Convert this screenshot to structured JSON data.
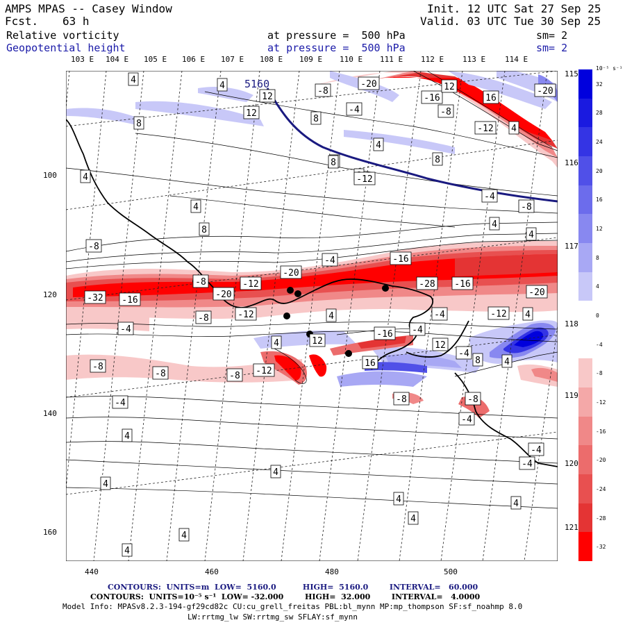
{
  "header": {
    "title": "AMPS MPAS -- Casey Window",
    "forecast_label": "Fcst.",
    "forecast_value": "63 h",
    "init": "Init. 12 UTC Sat 27 Sep 25",
    "valid": "Valid. 03 UTC Tue 30 Sep 25",
    "field1_name": "Relative vorticity",
    "field1_level": "at pressure =  500 hPa",
    "field1_sm": "sm= 2",
    "field2_name": "Geopotential height",
    "field2_level": "at pressure =  500 hPa",
    "field2_sm": "sm= 2"
  },
  "longitude_labels_top": [
    "103 E",
    "104 E",
    "105 E",
    "106 E",
    "107 E",
    "108 E",
    "109 E",
    "110 E",
    "111 E",
    "112 E",
    "113 E",
    "114 E"
  ],
  "longitude_labels_right": [
    "115 E",
    "116 E",
    "117 E",
    "118 E",
    "119 E",
    "120 E",
    "121 E"
  ],
  "x_axis_ticks": [
    "440",
    "460",
    "480",
    "500"
  ],
  "y_axis_ticks": [
    "100",
    "120",
    "140",
    "160"
  ],
  "colorbar": {
    "unit_label": "10⁻⁵ s⁻¹",
    "ticks": [
      "32",
      "28",
      "24",
      "20",
      "16",
      "12",
      "8",
      "4",
      "0",
      "-4",
      "-8",
      "-12",
      "-16",
      "-20",
      "-24",
      "-28",
      "-32"
    ],
    "colors": [
      "#0000dd",
      "#1a1ae0",
      "#3434e4",
      "#5050e8",
      "#6c6cec",
      "#8888f0",
      "#a8a8f4",
      "#c8c8f8",
      "#ffffff",
      "#ffffff",
      "#f8c8c8",
      "#f4a8a8",
      "#f08888",
      "#ec6c6c",
      "#e85050",
      "#e43434",
      "#ff0000"
    ]
  },
  "map_labels": {
    "height_contour": "5160",
    "vorticity_labels": [
      {
        "v": "4"
      },
      {
        "v": "4"
      },
      {
        "v": "-8"
      },
      {
        "v": "-20"
      },
      {
        "v": "12"
      },
      {
        "v": "-16"
      },
      {
        "v": "-8"
      },
      {
        "v": "16"
      },
      {
        "v": "-20"
      },
      {
        "v": "12"
      },
      {
        "v": "-4"
      },
      {
        "v": "8"
      },
      {
        "v": "-12"
      },
      {
        "v": "4"
      },
      {
        "v": "8"
      },
      {
        "v": "12"
      },
      {
        "v": "4"
      },
      {
        "v": "8"
      },
      {
        "v": "8"
      },
      {
        "v": "4"
      },
      {
        "v": "4"
      },
      {
        "v": "-4"
      },
      {
        "v": "-8"
      },
      {
        "v": "4"
      },
      {
        "v": "4"
      },
      {
        "v": "8"
      },
      {
        "v": "4"
      },
      {
        "v": "8"
      },
      {
        "v": "-12"
      },
      {
        "v": "-8"
      },
      {
        "v": "-4"
      },
      {
        "v": "-16"
      },
      {
        "v": "-20"
      },
      {
        "v": "-28"
      },
      {
        "v": "-16"
      },
      {
        "v": "-32"
      },
      {
        "v": "-16"
      },
      {
        "v": "-20"
      },
      {
        "v": "-12"
      },
      {
        "v": "-20"
      },
      {
        "v": "-8"
      },
      {
        "v": "-8"
      },
      {
        "v": "-4"
      },
      {
        "v": "-12"
      },
      {
        "v": "4"
      },
      {
        "v": "-16"
      },
      {
        "v": "-4"
      },
      {
        "v": "12"
      },
      {
        "v": "-12"
      },
      {
        "v": "4"
      },
      {
        "v": "-4"
      },
      {
        "v": "4"
      },
      {
        "v": "12"
      },
      {
        "v": "8"
      },
      {
        "v": "4"
      },
      {
        "v": "-8"
      },
      {
        "v": "-8"
      },
      {
        "v": "-8"
      },
      {
        "v": "-12"
      },
      {
        "v": "16"
      },
      {
        "v": "-4"
      },
      {
        "v": "-8"
      },
      {
        "v": "-4"
      },
      {
        "v": "-8"
      },
      {
        "v": "-4"
      },
      {
        "v": "-4"
      },
      {
        "v": "4"
      },
      {
        "v": "-4"
      },
      {
        "v": "4"
      },
      {
        "v": "4"
      },
      {
        "v": "4"
      },
      {
        "v": "4"
      },
      {
        "v": "4"
      },
      {
        "v": "4"
      },
      {
        "v": "4"
      }
    ]
  },
  "footer": {
    "contours1": "CONTOURS:  UNITS=m  LOW=  5160.0          HIGH=  5160.0        INTERVAL=   60.000",
    "contours2": "CONTOURS:  UNITS=10⁻⁵ s⁻¹  LOW= -32.000        HIGH=  32.000        INTERVAL=   4.0000",
    "model_info": "Model Info: MPASv8.2.3-194-gf29cd82c CU:cu_grell_freitas PBL:bl_mynn MP:mp_thompson SF:sf_noahmp 8.0",
    "model_info2": "LW:rrtmg_lw SW:rrtmg_sw SFLAY:sf_mynn"
  }
}
